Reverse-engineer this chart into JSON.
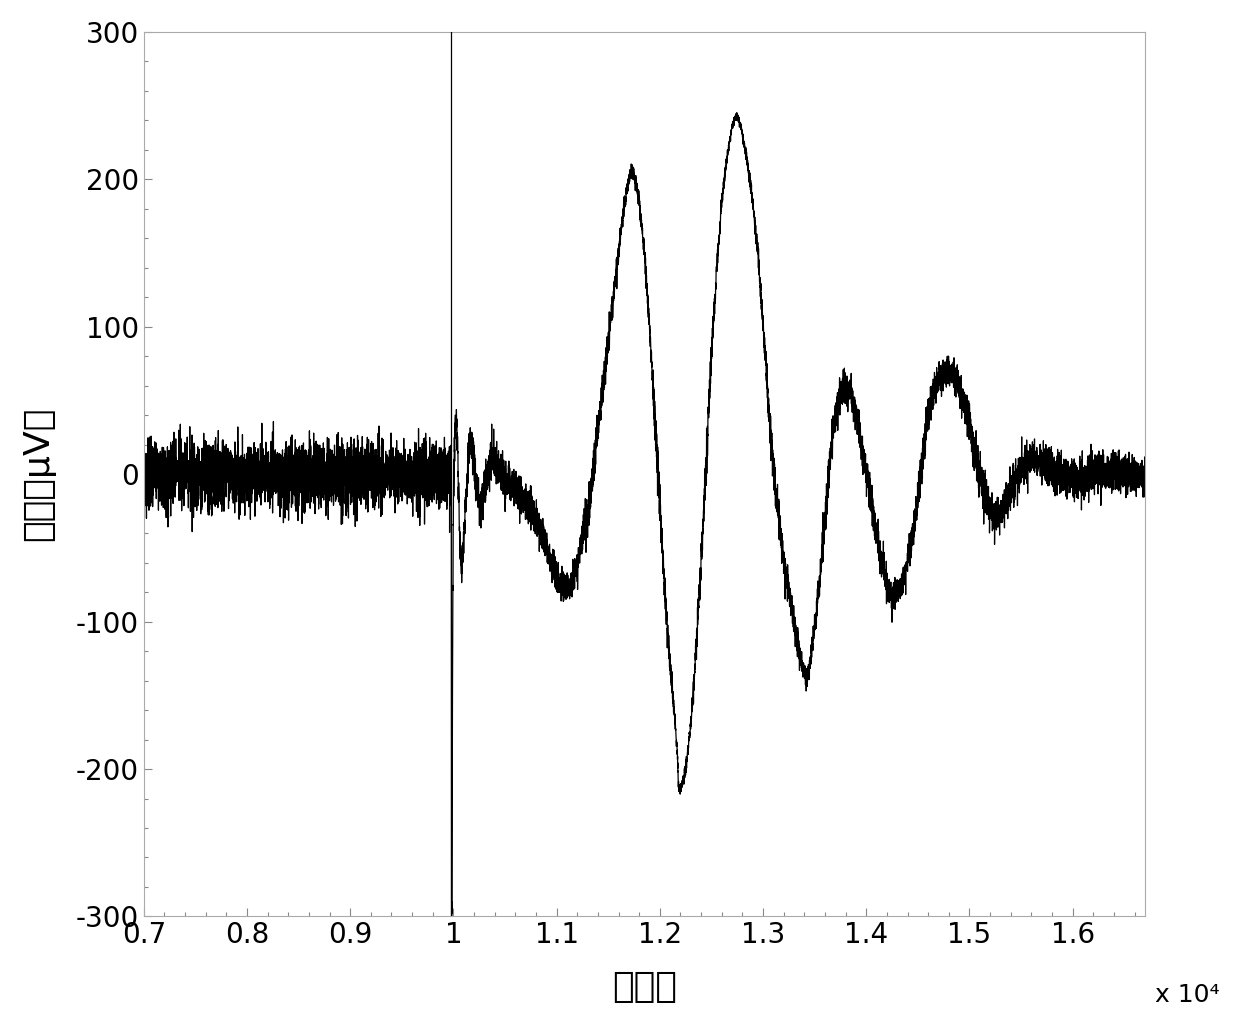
{
  "xlabel": "采样点",
  "ylabel": "幅値（μV）",
  "xlim": [
    7000,
    16700
  ],
  "ylim": [
    -300,
    300
  ],
  "xticks": [
    7000,
    8000,
    9000,
    10000,
    11000,
    12000,
    13000,
    14000,
    15000,
    16000
  ],
  "xticklabels": [
    "0.7",
    "0.8",
    "0.9",
    "1",
    "1.1",
    "1.2",
    "1.3",
    "1.4",
    "1.5",
    "1.6"
  ],
  "yticks": [
    -300,
    -200,
    -100,
    0,
    100,
    200,
    300
  ],
  "x_scale_label": "x 10⁴",
  "vline_x": 9980,
  "line_color": "#000000",
  "background_color": "#ffffff",
  "noise_amplitude": 14,
  "tms_x": 9980,
  "figsize": [
    12.4,
    10.25
  ],
  "dpi": 100,
  "signal_points": [
    [
      9980,
      0
    ],
    [
      9981,
      -10
    ],
    [
      9982,
      -50
    ],
    [
      9983,
      -300
    ],
    [
      9984,
      -300
    ],
    [
      9985,
      -300
    ],
    [
      9986,
      -290
    ],
    [
      9987,
      -270
    ],
    [
      9988,
      -240
    ],
    [
      9989,
      -200
    ],
    [
      9990,
      -160
    ],
    [
      9995,
      -80
    ],
    [
      10000,
      -20
    ],
    [
      10010,
      20
    ],
    [
      10020,
      40
    ],
    [
      10030,
      35
    ],
    [
      10040,
      20
    ],
    [
      10050,
      -10
    ],
    [
      10060,
      -40
    ],
    [
      10070,
      -60
    ],
    [
      10080,
      -65
    ],
    [
      10090,
      -55
    ],
    [
      10100,
      -40
    ],
    [
      10120,
      -20
    ],
    [
      10140,
      5
    ],
    [
      10160,
      20
    ],
    [
      10180,
      20
    ],
    [
      10200,
      10
    ],
    [
      10220,
      -5
    ],
    [
      10240,
      -15
    ],
    [
      10260,
      -20
    ],
    [
      10280,
      -18
    ],
    [
      10300,
      -12
    ],
    [
      10350,
      5
    ],
    [
      10400,
      10
    ],
    [
      10450,
      5
    ],
    [
      10500,
      -5
    ],
    [
      10600,
      -10
    ],
    [
      10700,
      -20
    ],
    [
      10800,
      -30
    ],
    [
      10900,
      -50
    ],
    [
      11000,
      -70
    ],
    [
      11100,
      -80
    ],
    [
      11200,
      -60
    ],
    [
      11300,
      -30
    ],
    [
      11400,
      30
    ],
    [
      11500,
      90
    ],
    [
      11600,
      150
    ],
    [
      11650,
      180
    ],
    [
      11700,
      200
    ],
    [
      11720,
      205
    ],
    [
      11740,
      205
    ],
    [
      11760,
      200
    ],
    [
      11800,
      185
    ],
    [
      11850,
      150
    ],
    [
      11900,
      100
    ],
    [
      11950,
      40
    ],
    [
      12000,
      -20
    ],
    [
      12050,
      -80
    ],
    [
      12100,
      -130
    ],
    [
      12150,
      -170
    ],
    [
      12170,
      -190
    ],
    [
      12180,
      -210
    ],
    [
      12190,
      -215
    ],
    [
      12200,
      -215
    ],
    [
      12210,
      -212
    ],
    [
      12250,
      -200
    ],
    [
      12300,
      -170
    ],
    [
      12350,
      -120
    ],
    [
      12400,
      -60
    ],
    [
      12450,
      10
    ],
    [
      12500,
      80
    ],
    [
      12550,
      140
    ],
    [
      12600,
      185
    ],
    [
      12650,
      215
    ],
    [
      12700,
      235
    ],
    [
      12730,
      242
    ],
    [
      12750,
      242
    ],
    [
      12780,
      238
    ],
    [
      12800,
      230
    ],
    [
      12850,
      210
    ],
    [
      12900,
      185
    ],
    [
      12950,
      150
    ],
    [
      13000,
      100
    ],
    [
      13050,
      50
    ],
    [
      13100,
      5
    ],
    [
      13150,
      -30
    ],
    [
      13200,
      -60
    ],
    [
      13250,
      -80
    ],
    [
      13300,
      -100
    ],
    [
      13350,
      -120
    ],
    [
      13380,
      -130
    ],
    [
      13400,
      -135
    ],
    [
      13420,
      -138
    ],
    [
      13440,
      -135
    ],
    [
      13460,
      -125
    ],
    [
      13500,
      -105
    ],
    [
      13550,
      -70
    ],
    [
      13600,
      -30
    ],
    [
      13650,
      10
    ],
    [
      13700,
      40
    ],
    [
      13750,
      55
    ],
    [
      13800,
      60
    ],
    [
      13850,
      55
    ],
    [
      13900,
      40
    ],
    [
      13950,
      20
    ],
    [
      14000,
      0
    ],
    [
      14050,
      -20
    ],
    [
      14100,
      -40
    ],
    [
      14150,
      -60
    ],
    [
      14200,
      -75
    ],
    [
      14250,
      -82
    ],
    [
      14300,
      -82
    ],
    [
      14350,
      -75
    ],
    [
      14400,
      -60
    ],
    [
      14450,
      -40
    ],
    [
      14500,
      -15
    ],
    [
      14550,
      15
    ],
    [
      14600,
      40
    ],
    [
      14650,
      55
    ],
    [
      14700,
      65
    ],
    [
      14750,
      70
    ],
    [
      14800,
      70
    ],
    [
      14850,
      68
    ],
    [
      14900,
      60
    ],
    [
      14950,
      48
    ],
    [
      15000,
      32
    ],
    [
      15050,
      15
    ],
    [
      15100,
      0
    ],
    [
      15150,
      -15
    ],
    [
      15200,
      -25
    ],
    [
      15250,
      -30
    ],
    [
      15300,
      -28
    ],
    [
      15350,
      -20
    ],
    [
      15400,
      -10
    ],
    [
      15500,
      5
    ],
    [
      15600,
      10
    ],
    [
      15700,
      8
    ],
    [
      15800,
      3
    ],
    [
      15900,
      0
    ],
    [
      16000,
      -3
    ],
    [
      16100,
      -2
    ],
    [
      16200,
      0
    ],
    [
      16300,
      1
    ],
    [
      16400,
      0
    ],
    [
      16500,
      0
    ],
    [
      16600,
      0
    ],
    [
      16700,
      0
    ]
  ]
}
